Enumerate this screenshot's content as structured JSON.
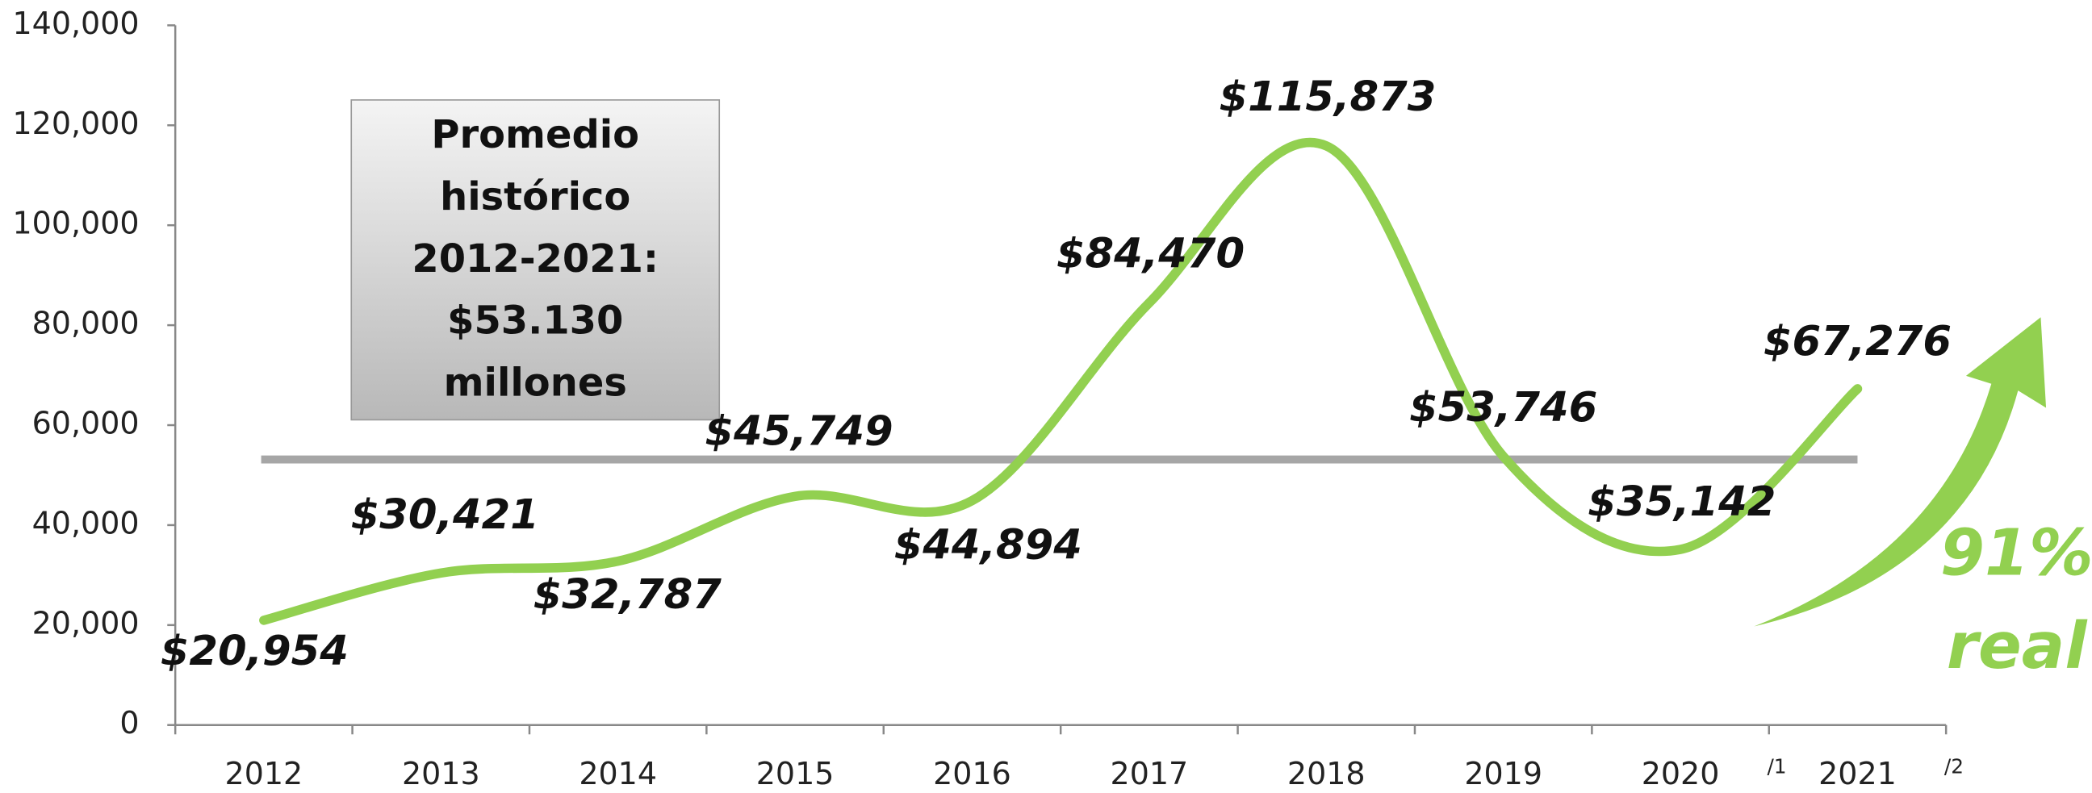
{
  "chart_data": {
    "type": "line",
    "categories": [
      "2012",
      "2013",
      "2014",
      "2015",
      "2016",
      "2017",
      "2018",
      "2019",
      "2020",
      "2021"
    ],
    "category_notes": [
      null,
      null,
      null,
      null,
      null,
      null,
      null,
      null,
      "/1",
      "/2"
    ],
    "values": [
      20954,
      30421,
      32787,
      45749,
      44894,
      84470,
      115873,
      53746,
      35142,
      67276
    ],
    "value_labels": [
      "$20,954",
      "$30,421",
      "$32,787",
      "$45,749",
      "$44,894",
      "$84,470",
      "$115,873",
      "$53,746",
      "$35,142",
      "$67,276"
    ],
    "color": "#92d050",
    "ylim": [
      0,
      140000
    ],
    "yticks": [
      0,
      {
        "value": 20000,
        "label": "20,000"
      },
      {
        "value": 40000,
        "label": "40,000"
      },
      {
        "value": 60000,
        "label": "60,000"
      },
      {
        "value": 80000,
        "label": "80,000"
      },
      {
        "value": 100000,
        "label": "100,000"
      },
      {
        "value": 120000,
        "label": "120,000"
      },
      {
        "value": 140000,
        "label": "140,000"
      }
    ],
    "average": {
      "value": 53130,
      "color": "#a6a6a6",
      "label_lines": [
        "Promedio",
        "histórico",
        "2012-2021:",
        "$53.130",
        "millones"
      ]
    },
    "annotation": {
      "lines": [
        "91%",
        "real"
      ],
      "color": "#92d050"
    }
  }
}
